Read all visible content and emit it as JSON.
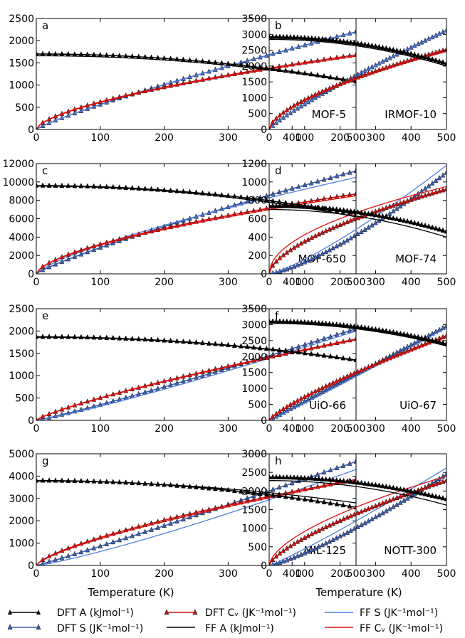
{
  "x_axis_label": "Temperature (K)",
  "legend": [
    {
      "key": "dft_a",
      "label": "DFT A (kJmol⁻¹)",
      "color": "#000000",
      "marker": true
    },
    {
      "key": "dft_s",
      "label": "DFT S (JK⁻¹mol⁻¹)",
      "color": "#3b5fb0",
      "marker": true
    },
    {
      "key": "dft_cv",
      "label": "DFT Cᵥ (JK⁻¹mol⁻¹)",
      "color": "#cc1010",
      "marker": true
    },
    {
      "key": "ff_a",
      "label": "FF A (kJmol⁻¹)",
      "color": "#000000",
      "marker": false
    },
    {
      "key": "ff_s",
      "label": "FF S (JK⁻¹mol⁻¹)",
      "color": "#4f7fe0",
      "marker": false
    },
    {
      "key": "ff_cv",
      "label": "FF Cᵥ (JK⁻¹mol⁻¹)",
      "color": "#e01010",
      "marker": false
    }
  ],
  "chart_data": [
    {
      "type": "line",
      "panel": "a",
      "title": "MOF-5",
      "xlabel": "",
      "ylabel": "",
      "xlim": [
        0,
        500
      ],
      "ylim": [
        0,
        2500
      ],
      "xticks": [
        0,
        100,
        200,
        300,
        400,
        500
      ],
      "yticks": [
        0,
        500,
        1000,
        1500,
        2000,
        2500
      ],
      "series": [
        {
          "name": "DFT A",
          "key": "dft_a",
          "kind": "A",
          "y0": 1700,
          "y500": 1080
        },
        {
          "name": "FF A",
          "key": "ff_a",
          "kind": "A",
          "y0": 1660,
          "y500": 1060
        },
        {
          "name": "DFT S",
          "key": "dft_s",
          "kind": "S",
          "y500": 2200,
          "g": 0.85
        },
        {
          "name": "FF S",
          "key": "ff_s",
          "kind": "S",
          "y500": 2190,
          "g": 0.85
        },
        {
          "name": "DFT Cv",
          "key": "dft_cv",
          "kind": "Cv",
          "y500": 1680,
          "g": 0.62
        },
        {
          "name": "FF Cv",
          "key": "ff_cv",
          "kind": "Cv",
          "y500": 1650,
          "g": 0.62
        }
      ]
    },
    {
      "type": "line",
      "panel": "b",
      "title": "IRMOF-10",
      "xlabel": "",
      "ylabel": "",
      "xlim": [
        0,
        500
      ],
      "ylim": [
        0,
        3500
      ],
      "xticks": [
        0,
        100,
        200,
        300,
        400,
        500
      ],
      "yticks": [
        0,
        500,
        1000,
        1500,
        2000,
        2500,
        3000,
        3500
      ],
      "series": [
        {
          "name": "DFT A",
          "key": "dft_a",
          "kind": "A",
          "y0": 2920,
          "y500": 2080
        },
        {
          "name": "FF A",
          "key": "ff_a",
          "kind": "A",
          "y0": 2840,
          "y500": 2000
        },
        {
          "name": "DFT S",
          "key": "dft_s",
          "kind": "S",
          "y500": 3120,
          "g": 0.85
        },
        {
          "name": "FF S",
          "key": "ff_s",
          "kind": "S",
          "y500": 3100,
          "g": 0.85
        },
        {
          "name": "DFT Cv",
          "key": "dft_cv",
          "kind": "Cv",
          "y500": 2520,
          "g": 0.62
        },
        {
          "name": "FF Cv",
          "key": "ff_cv",
          "kind": "Cv",
          "y500": 2460,
          "g": 0.62
        }
      ]
    },
    {
      "type": "line",
      "panel": "c",
      "title": "MOF-650",
      "xlabel": "",
      "ylabel": "",
      "xlim": [
        0,
        500
      ],
      "ylim": [
        0,
        12000
      ],
      "xticks": [
        0,
        100,
        200,
        300,
        400,
        500
      ],
      "yticks": [
        0,
        2000,
        4000,
        6000,
        8000,
        10000,
        12000
      ],
      "series": [
        {
          "name": "DFT A",
          "key": "dft_a",
          "kind": "A",
          "y0": 9600,
          "y500": 6500
        },
        {
          "name": "FF A",
          "key": "ff_a",
          "kind": "A",
          "y0": 9550,
          "y500": 6200
        },
        {
          "name": "DFT S",
          "key": "dft_s",
          "kind": "S",
          "y500": 11200,
          "g": 0.85
        },
        {
          "name": "FF S",
          "key": "ff_s",
          "kind": "S",
          "y500": 10500,
          "g": 0.75
        },
        {
          "name": "DFT Cv",
          "key": "dft_cv",
          "kind": "Cv",
          "y500": 8700,
          "g": 0.62
        },
        {
          "name": "FF Cv",
          "key": "ff_cv",
          "kind": "Cv",
          "y500": 8500,
          "g": 0.62
        }
      ]
    },
    {
      "type": "line",
      "panel": "d",
      "title": "MOF-74",
      "xlabel": "",
      "ylabel": "",
      "xlim": [
        0,
        500
      ],
      "ylim": [
        0,
        1200
      ],
      "xticks": [
        0,
        100,
        200,
        300,
        400,
        500
      ],
      "yticks": [
        0,
        200,
        400,
        600,
        800,
        1000,
        1200
      ],
      "series": [
        {
          "name": "DFT A",
          "key": "dft_a",
          "kind": "A",
          "y0": 740,
          "y500": 460
        },
        {
          "name": "FF A",
          "key": "ff_a",
          "kind": "A",
          "y0": 700,
          "y500": 400
        },
        {
          "name": "DFT S",
          "key": "dft_s",
          "kind": "S",
          "y500": 1100,
          "g": 1.35
        },
        {
          "name": "FF S",
          "key": "ff_s",
          "kind": "S",
          "y500": 1180,
          "g": 1.25
        },
        {
          "name": "DFT Cv",
          "key": "dft_cv",
          "kind": "Cv",
          "y500": 920,
          "g": 0.6
        },
        {
          "name": "FF Cv",
          "key": "ff_cv",
          "kind": "Cv",
          "y500": 950,
          "g": 0.5
        }
      ]
    },
    {
      "type": "line",
      "panel": "e",
      "title": "UiO-66",
      "xlabel": "",
      "ylabel": "",
      "xlim": [
        0,
        500
      ],
      "ylim": [
        0,
        2500
      ],
      "xticks": [
        0,
        100,
        200,
        300,
        400,
        500
      ],
      "yticks": [
        0,
        500,
        1000,
        1500,
        2000,
        2500
      ],
      "series": [
        {
          "name": "DFT A",
          "key": "dft_a",
          "kind": "A",
          "y0": 1870,
          "y500": 1350
        },
        {
          "name": "FF A",
          "key": "ff_a",
          "kind": "A",
          "y0": 1860,
          "y500": 1340
        },
        {
          "name": "DFT S",
          "key": "dft_s",
          "kind": "S",
          "y500": 2050,
          "g": 1.1
        },
        {
          "name": "FF S",
          "key": "ff_s",
          "kind": "S",
          "y500": 2000,
          "g": 1.15
        },
        {
          "name": "DFT Cv",
          "key": "dft_cv",
          "kind": "Cv",
          "y500": 1820,
          "g": 0.8
        },
        {
          "name": "FF Cv",
          "key": "ff_cv",
          "kind": "Cv",
          "y500": 1800,
          "g": 0.8
        }
      ]
    },
    {
      "type": "line",
      "panel": "f",
      "title": "UiO-67",
      "xlabel": "",
      "ylabel": "",
      "xlim": [
        0,
        500
      ],
      "ylim": [
        0,
        3500
      ],
      "xticks": [
        0,
        100,
        200,
        300,
        400,
        500
      ],
      "yticks": [
        0,
        500,
        1000,
        1500,
        2000,
        2500,
        3000,
        3500
      ],
      "series": [
        {
          "name": "DFT A",
          "key": "dft_a",
          "kind": "A",
          "y0": 3100,
          "y500": 2400
        },
        {
          "name": "FF A",
          "key": "ff_a",
          "kind": "A",
          "y0": 3040,
          "y500": 2330
        },
        {
          "name": "DFT S",
          "key": "dft_s",
          "kind": "S",
          "y500": 2950,
          "g": 1.0
        },
        {
          "name": "FF S",
          "key": "ff_s",
          "kind": "S",
          "y500": 2900,
          "g": 1.05
        },
        {
          "name": "DFT Cv",
          "key": "dft_cv",
          "kind": "Cv",
          "y500": 2650,
          "g": 0.8
        },
        {
          "name": "FF Cv",
          "key": "ff_cv",
          "kind": "Cv",
          "y500": 2600,
          "g": 0.8
        }
      ]
    },
    {
      "type": "line",
      "panel": "g",
      "title": "MIL-125",
      "xlabel": "Temperature (K)",
      "ylabel": "",
      "xlim": [
        0,
        500
      ],
      "ylim": [
        0,
        5000
      ],
      "xticks": [
        0,
        100,
        200,
        300,
        400,
        500
      ],
      "yticks": [
        0,
        1000,
        2000,
        3000,
        4000,
        5000
      ],
      "series": [
        {
          "name": "DFT A",
          "key": "dft_a",
          "kind": "A",
          "y0": 3800,
          "y500": 2600
        },
        {
          "name": "FF A",
          "key": "ff_a",
          "kind": "A",
          "y0": 3780,
          "y500": 2800
        },
        {
          "name": "DFT S",
          "key": "dft_s",
          "kind": "S",
          "y500": 4650,
          "g": 1.05
        },
        {
          "name": "FF S",
          "key": "ff_s",
          "kind": "S",
          "y500": 4300,
          "g": 1.2
        },
        {
          "name": "DFT Cv",
          "key": "dft_cv",
          "kind": "Cv",
          "y500": 3850,
          "g": 0.7
        },
        {
          "name": "FF Cv",
          "key": "ff_cv",
          "kind": "Cv",
          "y500": 3800,
          "g": 0.72
        }
      ]
    },
    {
      "type": "line",
      "panel": "h",
      "title": "NOTT-300",
      "xlabel": "Temperature (K)",
      "ylabel": "",
      "xlim": [
        0,
        500
      ],
      "ylim": [
        0,
        3000
      ],
      "xticks": [
        0,
        100,
        200,
        300,
        400,
        500
      ],
      "yticks": [
        0,
        500,
        1000,
        1500,
        2000,
        2500,
        3000
      ],
      "series": [
        {
          "name": "DFT A",
          "key": "dft_a",
          "kind": "A",
          "y0": 2370,
          "y500": 1780
        },
        {
          "name": "FF A",
          "key": "ff_a",
          "kind": "A",
          "y0": 2280,
          "y500": 1620
        },
        {
          "name": "DFT S",
          "key": "dft_s",
          "kind": "S",
          "y500": 2450,
          "g": 1.25
        },
        {
          "name": "FF S",
          "key": "ff_s",
          "kind": "S",
          "y500": 2620,
          "g": 1.1
        },
        {
          "name": "DFT Cv",
          "key": "dft_cv",
          "kind": "Cv",
          "y500": 2280,
          "g": 0.7
        },
        {
          "name": "FF Cv",
          "key": "ff_cv",
          "kind": "Cv",
          "y500": 2400,
          "g": 0.6
        }
      ]
    }
  ]
}
